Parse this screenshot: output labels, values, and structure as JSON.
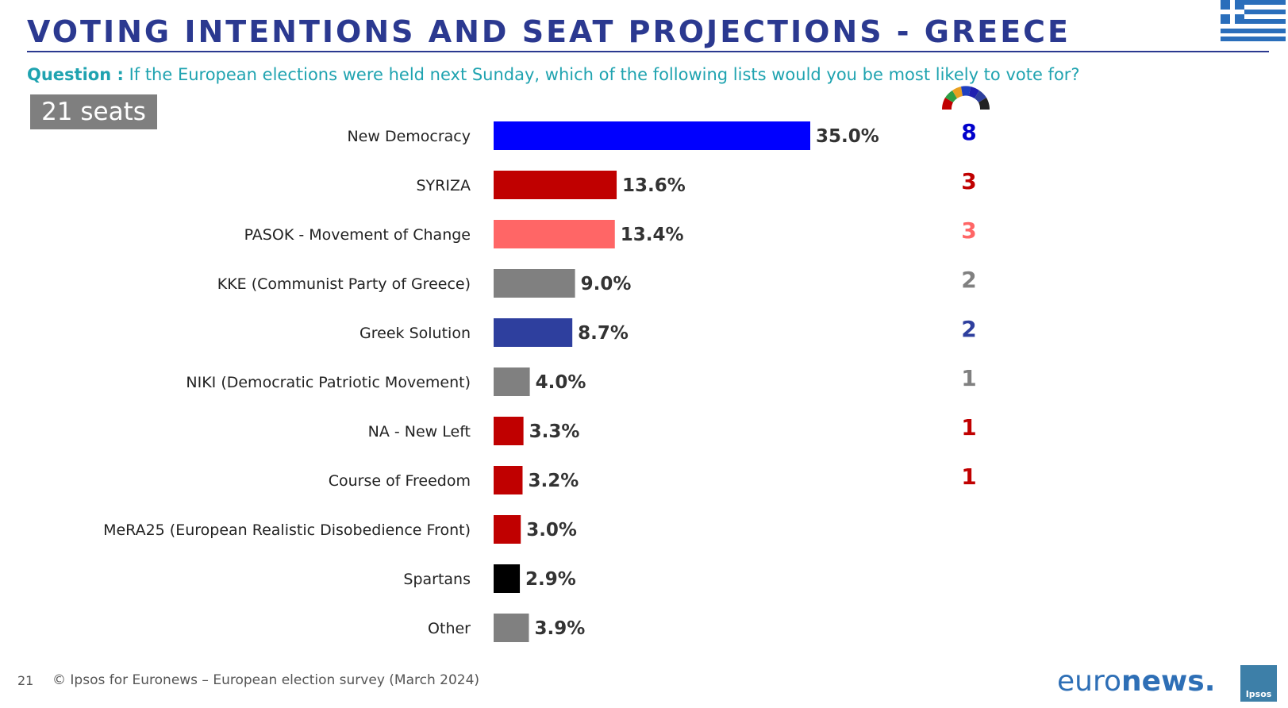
{
  "header": {
    "title": "VOTING INTENTIONS AND SEAT PROJECTIONS - GREECE",
    "question_label": "Question :",
    "question_text": "If the European elections were held next Sunday, which of the following lists would you be most likely to vote for?",
    "seats_total": "21 seats",
    "flag_icon": "greece-flag-icon",
    "hemicycle_icon": "parliament-hemicycle-icon"
  },
  "chart_data": {
    "type": "bar",
    "orientation": "horizontal",
    "categories": [
      "New Democracy",
      "SYRIZA",
      "PASOK - Movement of Change",
      "KKE (Communist Party of Greece)",
      "Greek Solution",
      "NIKI (Democratic Patriotic Movement)",
      "NA - New Left",
      "Course of Freedom",
      "MeRA25 (European Realistic Disobedience Front)",
      "Spartans",
      "Other"
    ],
    "values": [
      35.0,
      13.6,
      13.4,
      9.0,
      8.7,
      4.0,
      3.3,
      3.2,
      3.0,
      2.9,
      3.9
    ],
    "value_labels": [
      "35.0%",
      "13.6%",
      "13.4%",
      "9.0%",
      "8.7%",
      "4.0%",
      "3.3%",
      "3.2%",
      "3.0%",
      "2.9%",
      "3.9%"
    ],
    "colors": [
      "#0000ff",
      "#c00000",
      "#ff6666",
      "#808080",
      "#2e3f9e",
      "#808080",
      "#c00000",
      "#c00000",
      "#c00000",
      "#000000",
      "#808080"
    ],
    "seats": [
      "8",
      "3",
      "3",
      "2",
      "2",
      "1",
      "1",
      "1"
    ],
    "seat_colors": [
      "#0000cc",
      "#c00000",
      "#ff6666",
      "#808080",
      "#2e3f9e",
      "#808080",
      "#c00000",
      "#c00000"
    ],
    "xlim": [
      0,
      40
    ],
    "grid": false,
    "legend": "none"
  },
  "footer": {
    "page_number": "21",
    "source": "© Ipsos for Euronews – European election survey (March 2024)",
    "brand_light": "euro",
    "brand_bold": "news.",
    "ipsos_logo": "Ipsos"
  }
}
